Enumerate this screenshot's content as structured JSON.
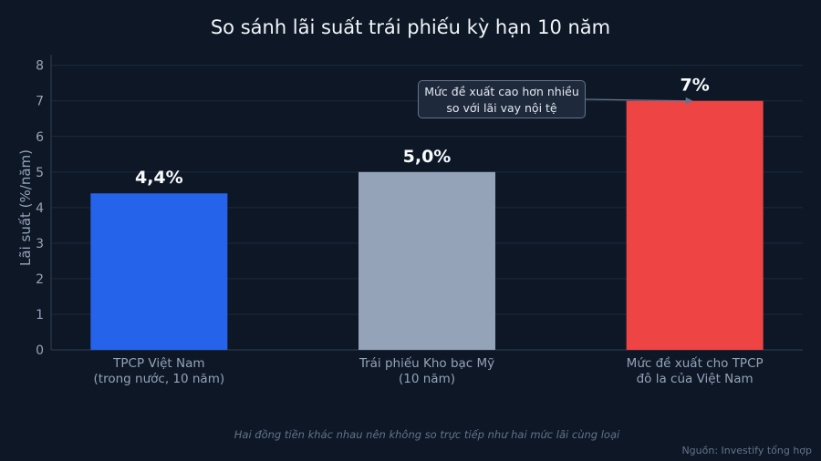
{
  "chart_data": {
    "type": "bar",
    "title": "So sánh lãi suất trái phiếu kỳ hạn 10 năm",
    "ylabel": "Lãi suất (%/năm)",
    "xlabel": "",
    "ylim": [
      0,
      8.3
    ],
    "yticks": [
      "0",
      "1",
      "2",
      "3",
      "4",
      "5",
      "6",
      "7",
      "8"
    ],
    "grid": true,
    "categories": [
      [
        "TPCP Việt Nam",
        "(trong nước, 10 năm)"
      ],
      [
        "Trái phiếu Kho bạc Mỹ",
        "(10 năm)"
      ],
      [
        "Mức đề xuất cho TPCP",
        "đô la của Việt Nam"
      ]
    ],
    "values": [
      4.4,
      5.0,
      7.0
    ],
    "data_labels": [
      "4,4%",
      "5,0%",
      "7%"
    ],
    "colors": [
      "#2563eb",
      "#94a3b8",
      "#ef4444"
    ],
    "annotation": {
      "lines": [
        "Mức đề xuất cao hơn nhiều",
        "so với lãi vay nội tệ"
      ],
      "points_to_value": 7.0
    }
  },
  "footnote": "Hai đồng tiền khác nhau nên không so trực tiếp như hai mức lãi cùng loại",
  "source": "Nguồn: Investify tổng hợp",
  "colors": {
    "background": "#0d1726",
    "grid": "#1e2a3b",
    "axis": "#334155",
    "tick_text": "#94a3b8",
    "label_text": "#f8fafc"
  }
}
